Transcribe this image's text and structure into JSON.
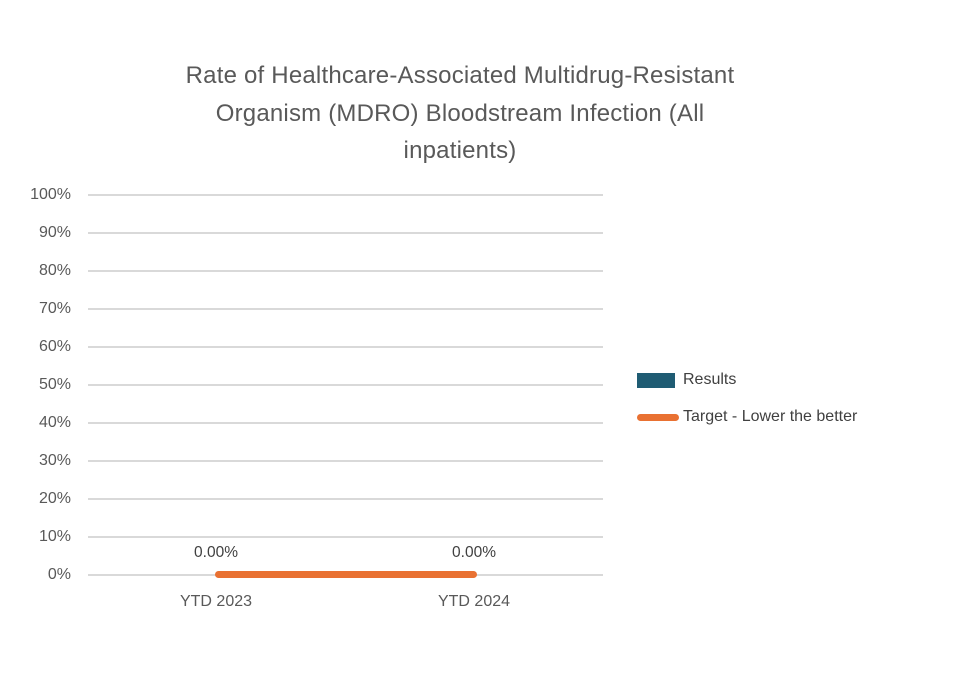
{
  "chart_data": {
    "type": "bar",
    "title": "Rate of Healthcare-Associated Multidrug-Resistant Organism (MDRO) Bloodstream Infection (All inpatients)",
    "title_lines": [
      "Rate of Healthcare-Associated Multidrug-Resistant",
      "Organism (MDRO) Bloodstream Infection (All",
      "inpatients)"
    ],
    "categories": [
      "YTD 2023",
      "YTD 2024"
    ],
    "series": [
      {
        "name": "Results",
        "type": "bar",
        "color": "#1F5C73",
        "values": [
          0.0,
          0.0
        ]
      },
      {
        "name": "Target - Lower the better",
        "type": "line",
        "color": "#E97132",
        "values": [
          0.0,
          0.0
        ]
      }
    ],
    "data_labels": [
      "0.00%",
      "0.00%"
    ],
    "y_ticks": [
      "0%",
      "10%",
      "20%",
      "30%",
      "40%",
      "50%",
      "60%",
      "70%",
      "80%",
      "90%",
      "100%"
    ],
    "ylim": [
      0,
      1
    ],
    "xlabel": "",
    "ylabel": "",
    "grid": true,
    "legend_position": "right"
  },
  "legend": {
    "items": [
      {
        "label": "Results",
        "swatch": "rect",
        "color": "#1F5C73"
      },
      {
        "label": "Target - Lower the better",
        "swatch": "line",
        "color": "#E97132"
      }
    ]
  },
  "colors": {
    "results_teal": "#1F5C73",
    "target_orange": "#E97132",
    "gridline_gray": "#D9D9D9",
    "title_gray": "#595959",
    "axis_text_gray": "#595959",
    "label_gray": "#404040",
    "background": "#FFFFFF"
  }
}
